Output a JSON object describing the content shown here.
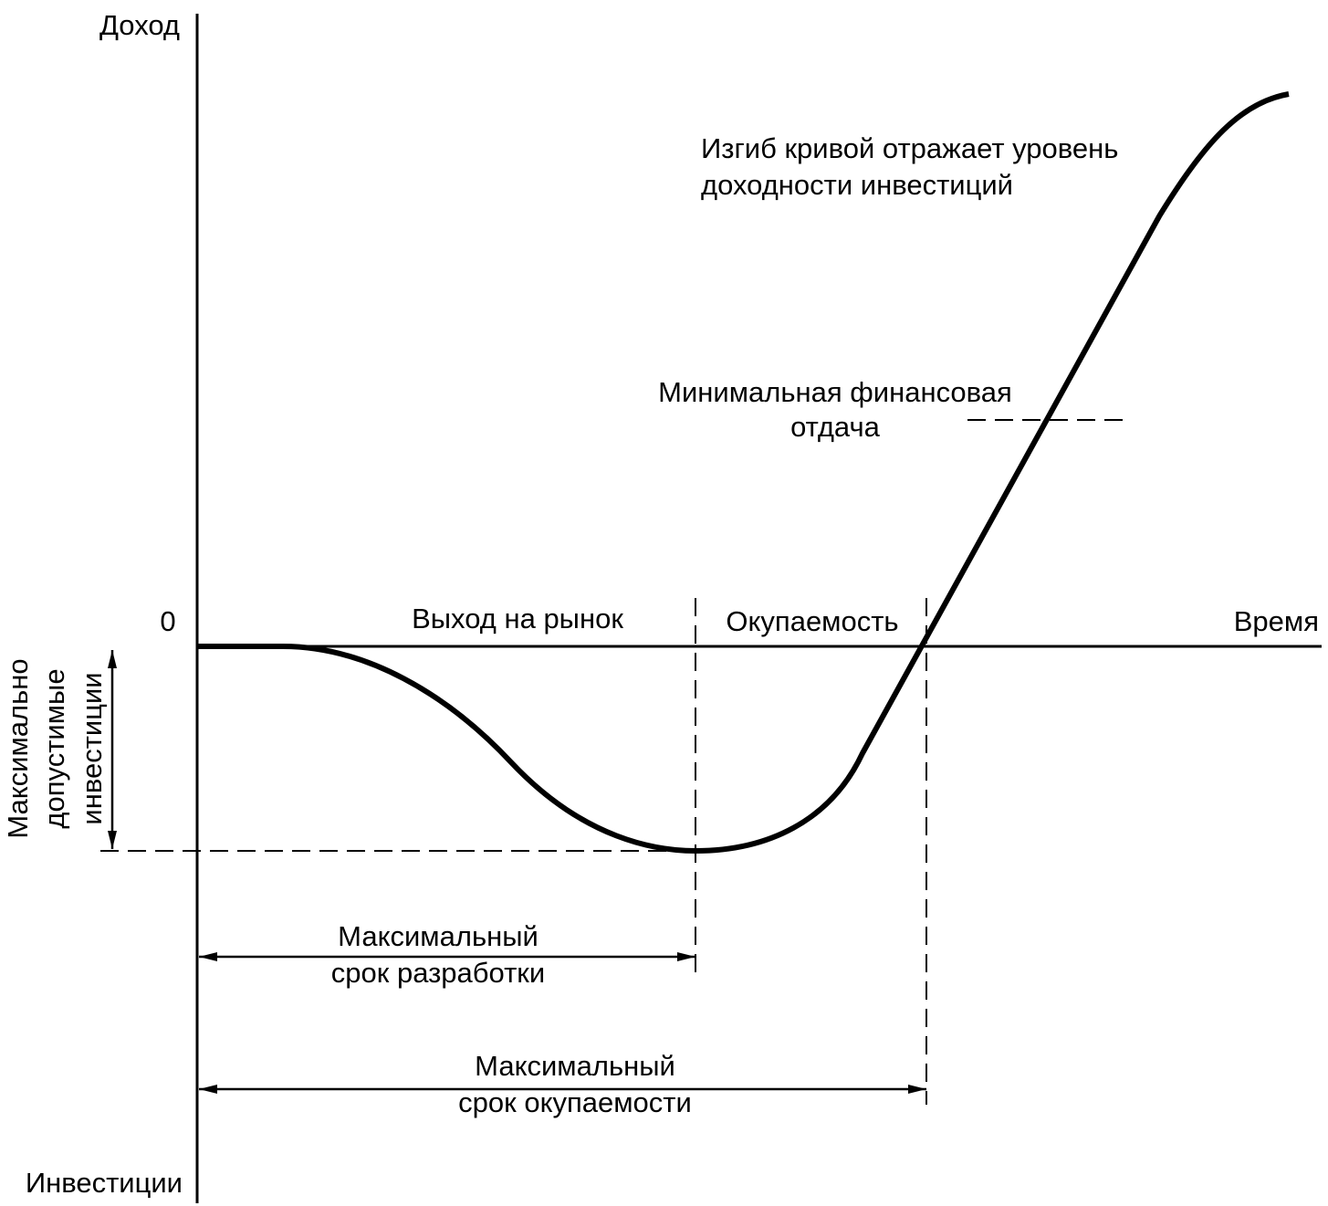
{
  "axes": {
    "y_top": "Доход",
    "y_bottom": "Инвестиции",
    "origin": "0",
    "x": "Время"
  },
  "phases": {
    "market_entry": "Выход на рынок",
    "payback": "Окупаемость"
  },
  "max_investment": {
    "lines": [
      "Максимально",
      "допустимые",
      "инвестиции"
    ]
  },
  "curve_note": {
    "lines": [
      "Изгиб кривой отражает уровень",
      "доходности инвестиций"
    ]
  },
  "min_return": {
    "lines": [
      "Минимальная финансовая",
      "отдача"
    ]
  },
  "max_dev_time": {
    "lines": [
      "Максимальный",
      "срок разработки"
    ]
  },
  "max_payback_time": {
    "lines": [
      "Максимальный",
      "срок окупаемости"
    ]
  }
}
